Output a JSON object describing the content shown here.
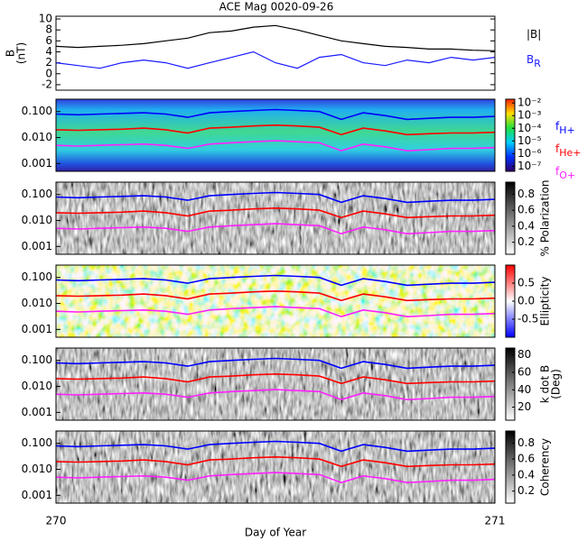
{
  "chart_data": [
    {
      "type": "line",
      "title": "ACE Mag 0020-09-26",
      "ylabel": [
        "B",
        "(nT)"
      ],
      "x": [
        270,
        270.05,
        270.1,
        270.15,
        270.2,
        270.25,
        270.3,
        270.35,
        270.4,
        270.45,
        270.5,
        270.55,
        270.6,
        270.65,
        270.7,
        270.75,
        270.8,
        270.85,
        270.9,
        270.95,
        271
      ],
      "xlim": [
        270,
        271
      ],
      "ylim": [
        -3,
        10.5
      ],
      "yticks": [
        -2,
        0,
        2,
        4,
        6,
        8,
        10
      ],
      "series": [
        {
          "name": "|B|",
          "color": "#000000",
          "values": [
            5,
            4.8,
            5,
            5.2,
            5.5,
            6,
            6.5,
            7.5,
            7.8,
            8.5,
            8.8,
            8,
            7,
            6,
            5.5,
            5,
            4.8,
            4.5,
            4.5,
            4.3,
            4.2
          ]
        },
        {
          "name": "B",
          "name_sub": "R",
          "color": "#1a1aff",
          "values": [
            2,
            1.5,
            1,
            2,
            2.5,
            2,
            1,
            2,
            3,
            4,
            2,
            1,
            3,
            3.5,
            2,
            1.5,
            2.5,
            2,
            3,
            2.5,
            3
          ]
        }
      ]
    },
    {
      "type": "spectrogram",
      "colormap": "rainbow",
      "log_y": true,
      "ylim": [
        0.0005,
        0.3
      ],
      "yticks": [
        {
          "value": 0.001,
          "label": "0.001"
        },
        {
          "value": 0.01,
          "label": "0.010"
        },
        {
          "value": 0.1,
          "label": "0.100"
        }
      ],
      "clim": [
        -7.4,
        -1.7
      ],
      "cticks": [
        {
          "value": -2,
          "label": "10⁻²"
        },
        {
          "value": -3,
          "label": "10⁻³"
        },
        {
          "value": -4,
          "label": "10⁻⁴"
        },
        {
          "value": -5,
          "label": "10⁻⁵"
        },
        {
          "value": -6,
          "label": "10⁻⁶"
        },
        {
          "value": -7,
          "label": "10⁻⁷"
        }
      ],
      "x": [
        270,
        270.05,
        270.1,
        270.15,
        270.2,
        270.25,
        270.3,
        270.35,
        270.4,
        270.45,
        270.5,
        270.55,
        270.6,
        270.65,
        270.7,
        270.75,
        270.8,
        270.85,
        270.9,
        270.95,
        271
      ],
      "xlim": [
        270,
        271
      ],
      "series": [
        {
          "name": "f",
          "name_sub": "H+",
          "color": "#0000ff",
          "values": [
            0.08,
            0.075,
            0.08,
            0.085,
            0.09,
            0.08,
            0.06,
            0.09,
            0.1,
            0.11,
            0.12,
            0.11,
            0.1,
            0.05,
            0.09,
            0.07,
            0.05,
            0.055,
            0.06,
            0.06,
            0.065
          ]
        },
        {
          "name": "f",
          "name_sub": "He+",
          "color": "#ff0000",
          "values": [
            0.02,
            0.019,
            0.02,
            0.021,
            0.023,
            0.02,
            0.015,
            0.023,
            0.025,
            0.028,
            0.03,
            0.028,
            0.025,
            0.013,
            0.023,
            0.018,
            0.013,
            0.014,
            0.015,
            0.015,
            0.016
          ]
        },
        {
          "name": "f",
          "name_sub": "O+",
          "color": "#ff20ff",
          "values": [
            0.005,
            0.0047,
            0.005,
            0.0053,
            0.0056,
            0.005,
            0.0038,
            0.0056,
            0.0063,
            0.0069,
            0.0075,
            0.0069,
            0.0063,
            0.0031,
            0.0056,
            0.0044,
            0.0031,
            0.0034,
            0.0038,
            0.0038,
            0.0041
          ]
        }
      ]
    },
    {
      "type": "spectrogram",
      "colormap": "gray",
      "log_y": true,
      "ylim": [
        0.0005,
        0.3
      ],
      "yticks": [
        {
          "value": 0.001,
          "label": "0.001"
        },
        {
          "value": 0.01,
          "label": "0.010"
        },
        {
          "value": 0.1,
          "label": "0.100"
        }
      ],
      "clim": [
        0.05,
        0.95
      ],
      "cticks": [
        0.2,
        0.4,
        0.6,
        0.8
      ],
      "clabel": [
        "% Polarization"
      ]
    },
    {
      "type": "spectrogram",
      "colormap": "bwr",
      "log_y": true,
      "ylim": [
        0.0005,
        0.3
      ],
      "yticks": [
        {
          "value": 0.001,
          "label": "0.001"
        },
        {
          "value": 0.01,
          "label": "0.010"
        },
        {
          "value": 0.1,
          "label": "0.100"
        }
      ],
      "clim": [
        -1,
        1
      ],
      "cticks": [
        {
          "value": -0.5,
          "label": "-0.5"
        },
        {
          "value": 0,
          "label": "0.0"
        },
        {
          "value": 0.5,
          "label": "0.5"
        }
      ],
      "clabel": [
        "Ellipticity"
      ]
    },
    {
      "type": "spectrogram",
      "colormap": "gray",
      "log_y": true,
      "ylim": [
        0.0005,
        0.3
      ],
      "yticks": [
        {
          "value": 0.001,
          "label": "0.001"
        },
        {
          "value": 0.01,
          "label": "0.010"
        },
        {
          "value": 0.1,
          "label": "0.100"
        }
      ],
      "clim": [
        5,
        88
      ],
      "cticks": [
        20,
        40,
        60,
        80
      ],
      "clabel": [
        "k dot B",
        "(Deg)"
      ]
    },
    {
      "type": "spectrogram",
      "colormap": "gray",
      "log_y": true,
      "ylim": [
        0.0005,
        0.3
      ],
      "yticks": [
        {
          "value": 0.001,
          "label": "0.001"
        },
        {
          "value": 0.01,
          "label": "0.010"
        },
        {
          "value": 0.1,
          "label": "0.100"
        }
      ],
      "clim": [
        0.05,
        0.95
      ],
      "cticks": [
        0.2,
        0.4,
        0.6,
        0.8
      ],
      "clabel": [
        "Coherency"
      ],
      "xticks": [
        270,
        271
      ],
      "xlabel": "Day of Year"
    }
  ]
}
